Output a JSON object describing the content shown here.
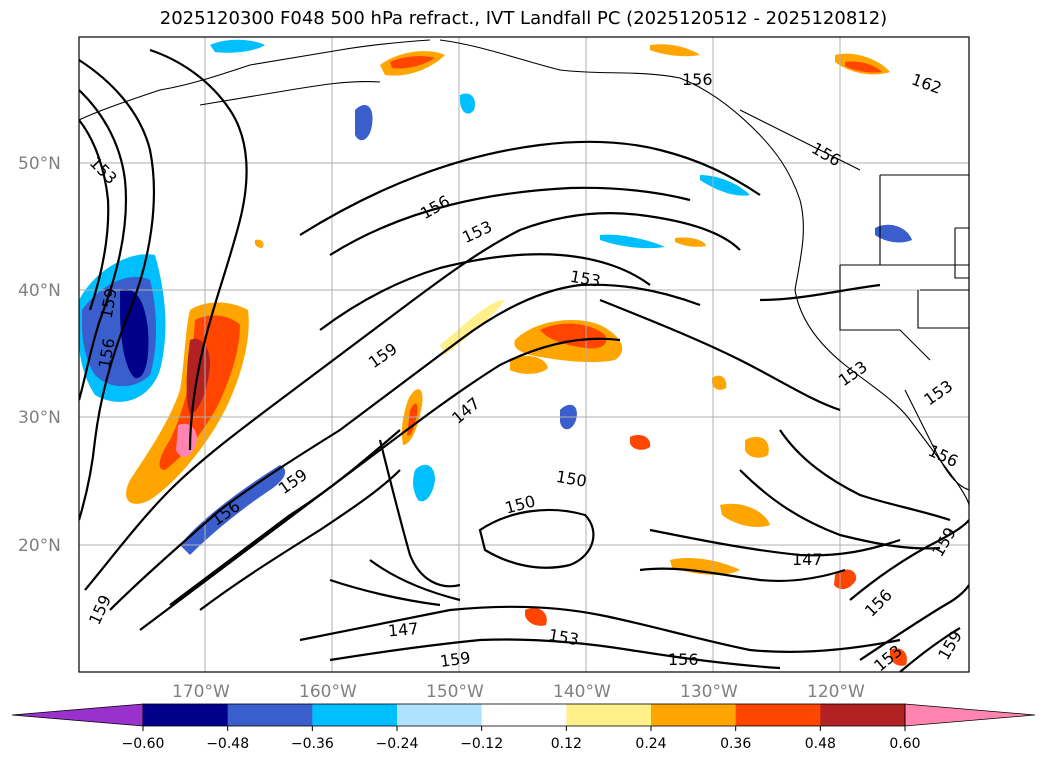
{
  "title": "2025120300 F048 500 hPa refract., IVT Landfall PC (2025120512 - 2025120812)",
  "map": {
    "lat_labels": [
      "50°N",
      "40°N",
      "30°N",
      "20°N"
    ],
    "lon_labels": [
      "170°W",
      "160°W",
      "150°W",
      "140°W",
      "130°W",
      "120°W"
    ],
    "grid_color": "#b0b0b0",
    "contour_color": "#000000",
    "contour_labels": [
      "153",
      "159",
      "156",
      "156",
      "153",
      "153",
      "159",
      "159",
      "156",
      "147",
      "150",
      "150",
      "159",
      "156",
      "147",
      "153",
      "153",
      "159",
      "156",
      "147",
      "156",
      "159",
      "153",
      "159",
      "156",
      "162",
      "156",
      "153"
    ]
  },
  "colorbar": {
    "ticks": [
      "−0.60",
      "−0.48",
      "−0.36",
      "−0.24",
      "−0.12",
      "0.12",
      "0.24",
      "0.36",
      "0.48",
      "0.60"
    ],
    "colors": [
      "#9932cc",
      "#00008b",
      "#3a5fcd",
      "#00bfff",
      "#b0e2ff",
      "#ffffff",
      "#fff08c",
      "#ffa500",
      "#ff4500",
      "#b22222",
      "#ff85b0"
    ],
    "extend": "both"
  }
}
